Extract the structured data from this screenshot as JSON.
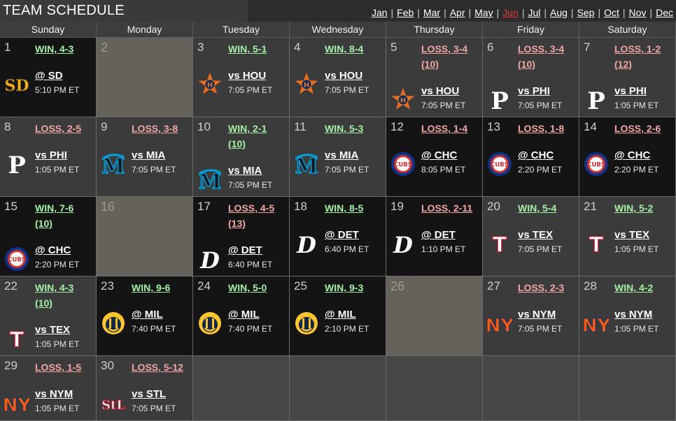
{
  "header": {
    "title": "TEAM SCHEDULE",
    "months": [
      {
        "label": "Jan",
        "current": false
      },
      {
        "label": "Feb",
        "current": false
      },
      {
        "label": "Mar",
        "current": false
      },
      {
        "label": "Apr",
        "current": false
      },
      {
        "label": "May",
        "current": false
      },
      {
        "label": "Jun",
        "current": true
      },
      {
        "label": "Jul",
        "current": false
      },
      {
        "label": "Aug",
        "current": false
      },
      {
        "label": "Sep",
        "current": false
      },
      {
        "label": "Oct",
        "current": false
      },
      {
        "label": "Nov",
        "current": false
      },
      {
        "label": "Dec",
        "current": false
      }
    ]
  },
  "weekdays": [
    "Sunday",
    "Monday",
    "Tuesday",
    "Wednesday",
    "Thursday",
    "Friday",
    "Saturday"
  ],
  "days": [
    {
      "day": "1",
      "status": "away",
      "result": "WIN, 4-3",
      "outcome": "win",
      "opponent": "@ SD",
      "team": "SD",
      "time": "5:10 PM ET"
    },
    {
      "day": "2",
      "status": "off"
    },
    {
      "day": "3",
      "status": "home",
      "result": "WIN, 5-1",
      "outcome": "win",
      "opponent": "vs HOU",
      "team": "HOU",
      "time": "7:05 PM ET"
    },
    {
      "day": "4",
      "status": "home",
      "result": "WIN, 8-4",
      "outcome": "win",
      "opponent": "vs HOU",
      "team": "HOU",
      "time": "7:05 PM ET"
    },
    {
      "day": "5",
      "status": "home",
      "result": "LOSS, 3-4\n(10)",
      "outcome": "loss",
      "opponent": "vs HOU",
      "team": "HOU",
      "time": "7:05 PM ET"
    },
    {
      "day": "6",
      "status": "home",
      "result": "LOSS, 3-4\n(10)",
      "outcome": "loss",
      "opponent": "vs PHI",
      "team": "PHI",
      "time": "7:05 PM ET"
    },
    {
      "day": "7",
      "status": "home",
      "result": "LOSS, 1-2\n(12)",
      "outcome": "loss",
      "opponent": "vs PHI",
      "team": "PHI",
      "time": "1:05 PM ET"
    },
    {
      "day": "8",
      "status": "home",
      "result": "LOSS, 2-5",
      "outcome": "loss",
      "opponent": "vs PHI",
      "team": "PHI",
      "time": "1:05 PM ET"
    },
    {
      "day": "9",
      "status": "home",
      "result": "LOSS, 3-8",
      "outcome": "loss",
      "opponent": "vs MIA",
      "team": "MIA",
      "time": "7:05 PM ET"
    },
    {
      "day": "10",
      "status": "home",
      "result": "WIN, 2-1\n(10)",
      "outcome": "win",
      "opponent": "vs MIA",
      "team": "MIA",
      "time": "7:05 PM ET"
    },
    {
      "day": "11",
      "status": "home",
      "result": "WIN, 5-3",
      "outcome": "win",
      "opponent": "vs MIA",
      "team": "MIA",
      "time": "7:05 PM ET"
    },
    {
      "day": "12",
      "status": "away",
      "result": "LOSS, 1-4",
      "outcome": "loss",
      "opponent": "@ CHC",
      "team": "CHC",
      "time": "8:05 PM ET"
    },
    {
      "day": "13",
      "status": "away",
      "result": "LOSS, 1-8",
      "outcome": "loss",
      "opponent": "@ CHC",
      "team": "CHC",
      "time": "2:20 PM ET"
    },
    {
      "day": "14",
      "status": "away",
      "result": "LOSS, 2-6",
      "outcome": "loss",
      "opponent": "@ CHC",
      "team": "CHC",
      "time": "2:20 PM ET"
    },
    {
      "day": "15",
      "status": "away",
      "result": "WIN, 7-6\n(10)",
      "outcome": "win",
      "opponent": "@ CHC",
      "team": "CHC",
      "time": "2:20 PM ET"
    },
    {
      "day": "16",
      "status": "off"
    },
    {
      "day": "17",
      "status": "away",
      "result": "LOSS, 4-5\n(13)",
      "outcome": "loss",
      "opponent": "@ DET",
      "team": "DET",
      "time": "6:40 PM ET"
    },
    {
      "day": "18",
      "status": "away",
      "result": "WIN, 8-5",
      "outcome": "win",
      "opponent": "@ DET",
      "team": "DET",
      "time": "6:40 PM ET"
    },
    {
      "day": "19",
      "status": "away",
      "result": "LOSS, 2-11",
      "outcome": "loss",
      "opponent": "@ DET",
      "team": "DET",
      "time": "1:10 PM ET"
    },
    {
      "day": "20",
      "status": "home",
      "result": "WIN, 5-4",
      "outcome": "win",
      "opponent": "vs TEX",
      "team": "TEX",
      "time": "7:05 PM ET"
    },
    {
      "day": "21",
      "status": "home",
      "result": "WIN, 5-2",
      "outcome": "win",
      "opponent": "vs TEX",
      "team": "TEX",
      "time": "1:05 PM ET"
    },
    {
      "day": "22",
      "status": "home",
      "result": "WIN, 4-3\n(10)",
      "outcome": "win",
      "opponent": "vs TEX",
      "team": "TEX",
      "time": "1:05 PM ET"
    },
    {
      "day": "23",
      "status": "away",
      "result": "WIN, 9-6",
      "outcome": "win",
      "opponent": "@ MIL",
      "team": "MIL",
      "time": "7:40 PM ET"
    },
    {
      "day": "24",
      "status": "away",
      "result": "WIN, 5-0",
      "outcome": "win",
      "opponent": "@ MIL",
      "team": "MIL",
      "time": "7:40 PM ET"
    },
    {
      "day": "25",
      "status": "away",
      "result": "WIN, 9-3",
      "outcome": "win",
      "opponent": "@ MIL",
      "team": "MIL",
      "time": "2:10 PM ET"
    },
    {
      "day": "26",
      "status": "off"
    },
    {
      "day": "27",
      "status": "home",
      "result": "LOSS, 2-3",
      "outcome": "loss",
      "opponent": "vs NYM",
      "team": "NYM",
      "time": "7:05 PM ET"
    },
    {
      "day": "28",
      "status": "home",
      "result": "WIN, 4-2",
      "outcome": "win",
      "opponent": "vs NYM",
      "team": "NYM",
      "time": "1:05 PM ET"
    },
    {
      "day": "29",
      "status": "home",
      "result": "LOSS, 1-5",
      "outcome": "loss",
      "opponent": "vs NYM",
      "team": "NYM",
      "time": "1:05 PM ET"
    },
    {
      "day": "30",
      "status": "home",
      "result": "LOSS, 5-12",
      "outcome": "loss",
      "opponent": "vs STL",
      "team": "STL",
      "time": "7:05 PM ET"
    },
    {
      "status": "blank"
    },
    {
      "status": "blank"
    },
    {
      "status": "blank"
    },
    {
      "status": "blank"
    },
    {
      "status": "blank"
    }
  ],
  "logos": {
    "SD": {
      "icon": "padres-logo-icon",
      "color": "#f2b21c",
      "letters": "SD"
    },
    "HOU": {
      "icon": "astros-logo-icon",
      "color": "#eb6e1f"
    },
    "PHI": {
      "icon": "phillies-logo-icon",
      "color": "#ffffff",
      "letters": "P"
    },
    "MIA": {
      "icon": "marlins-logo-icon",
      "color": "#101820",
      "accent": "#00a3e0",
      "letters": "M"
    },
    "CHC": {
      "icon": "cubs-logo-icon",
      "color": "#cc3433",
      "ring": "#0e3386",
      "letters": "CUBS"
    },
    "DET": {
      "icon": "tigers-logo-icon",
      "color": "#ffffff",
      "letters": "D"
    },
    "TEX": {
      "icon": "rangers-logo-icon",
      "color": "#ffffff",
      "accent": "#c0111f",
      "letters": "T"
    },
    "MIL": {
      "icon": "brewers-logo-icon",
      "color": "#12284b",
      "accent": "#ffc52f"
    },
    "NYM": {
      "icon": "mets-logo-icon",
      "color": "#ff5910",
      "letters": "NY"
    },
    "STL": {
      "icon": "cardinals-logo-icon",
      "color": "#ffffff",
      "accent": "#c41e3a",
      "letters": "StL"
    }
  }
}
